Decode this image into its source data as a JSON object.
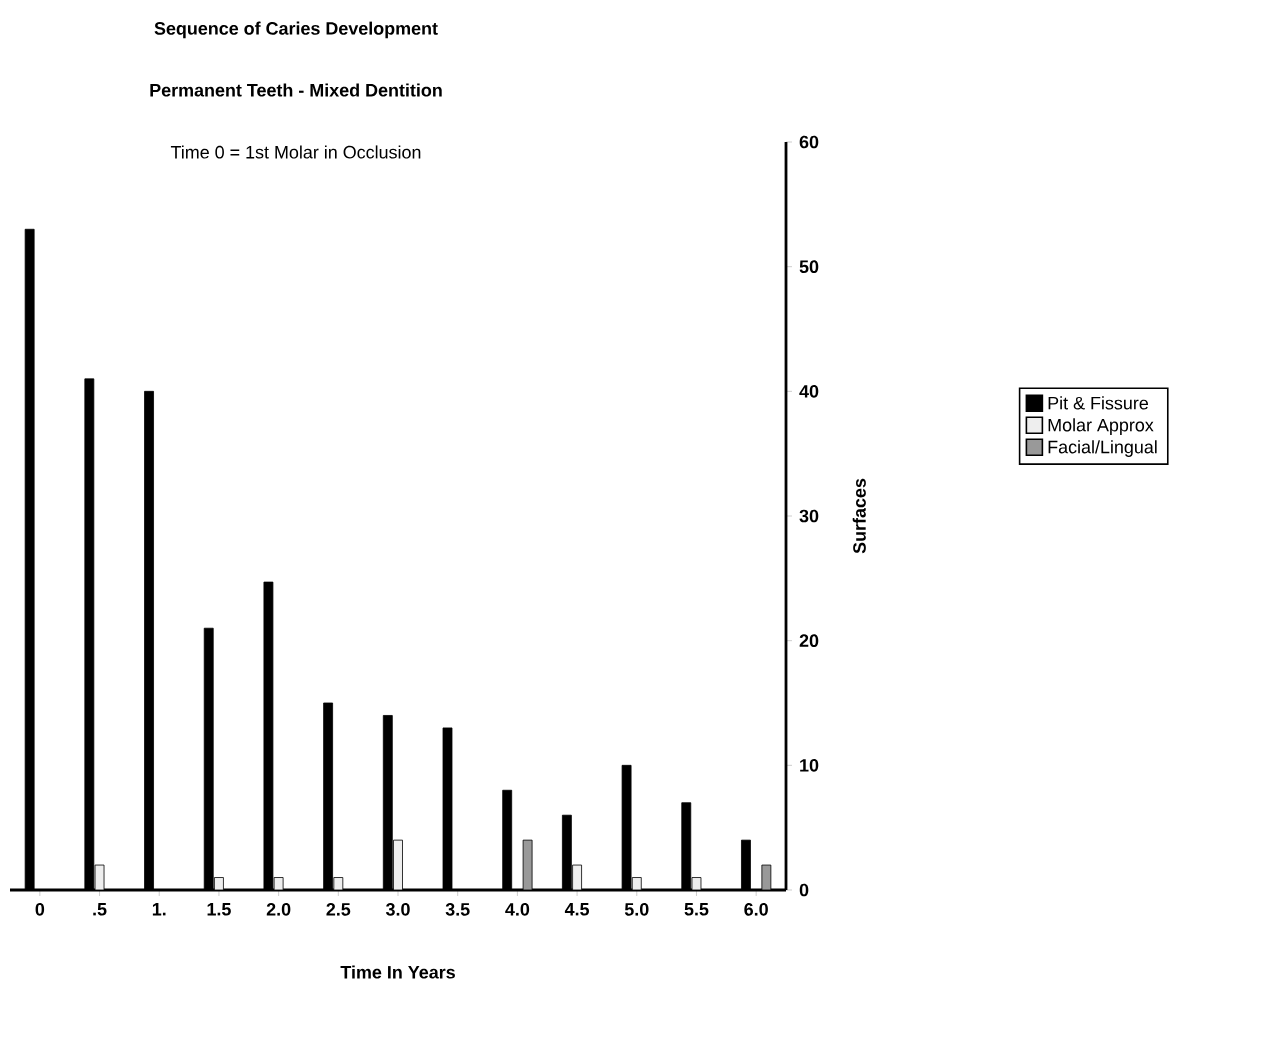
{
  "chart_data": {
    "type": "bar",
    "title": "Sequence of Caries Development",
    "subtitle": "Permanent Teeth - Mixed Dentition",
    "annotations": [
      "Time 0 = 1st Molar in Occlusion"
    ],
    "xlabel": "Time In Years",
    "ylabel": "Surfaces",
    "categories": [
      "0",
      ".5",
      "1.",
      "1.5",
      "2.0",
      "2.5",
      "3.0",
      "3.5",
      "4.0",
      "4.5",
      "5.0",
      "5.5",
      "6.0"
    ],
    "series": [
      {
        "name": "Pit & Fissure",
        "color": "#000000",
        "values": [
          53,
          41,
          40,
          21,
          24.7,
          15,
          14,
          13,
          8,
          6,
          10,
          7,
          4
        ]
      },
      {
        "name": "Molar Approx",
        "color": "#eeeeee",
        "values": [
          0,
          2,
          0,
          1,
          1,
          1,
          4,
          0,
          0,
          2,
          1,
          1,
          0
        ]
      },
      {
        "name": "Facial/Lingual",
        "color": "#999999",
        "values": [
          0,
          0,
          0,
          0,
          0,
          0,
          0,
          0,
          4,
          0,
          0,
          0,
          2
        ]
      }
    ],
    "ylim": [
      0,
      60
    ],
    "yticks": [
      0,
      10,
      20,
      30,
      40,
      50,
      60
    ],
    "legend": "right",
    "grid": false
  }
}
